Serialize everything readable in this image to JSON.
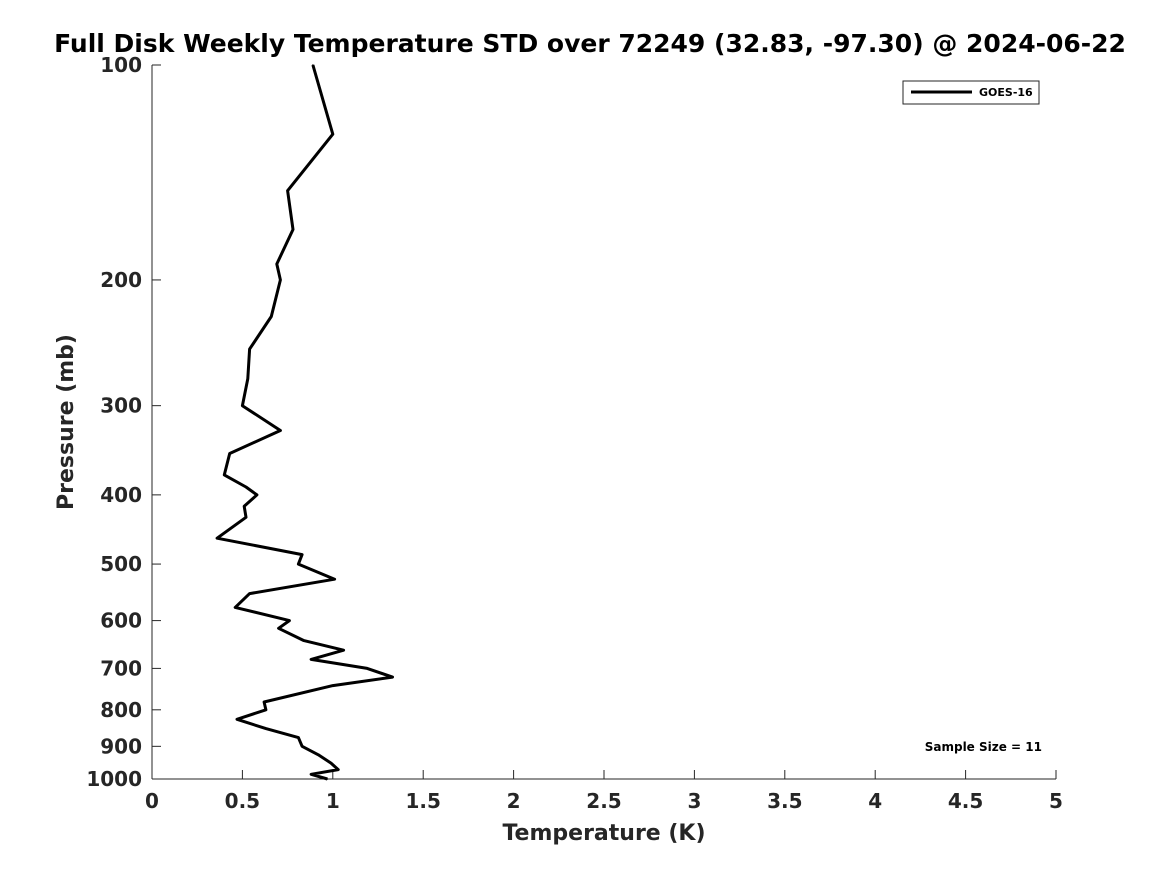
{
  "chart_data": {
    "type": "line",
    "title": "Full Disk Weekly Temperature STD over 72249 (32.83, -97.30) @ 2024-06-22",
    "xlabel": "Temperature (K)",
    "ylabel": "Pressure (mb)",
    "xlim": [
      0,
      5
    ],
    "ylim": [
      100,
      1000
    ],
    "y_scale": "log",
    "y_reversed": true,
    "x_ticks": [
      "0",
      "0.5",
      "1",
      "1.5",
      "2",
      "2.5",
      "3",
      "3.5",
      "4",
      "4.5",
      "5"
    ],
    "y_ticks": [
      "100",
      "200",
      "300",
      "400",
      "500",
      "600",
      "700",
      "800",
      "900",
      "1000"
    ],
    "grid": false,
    "legend_position": "top-right",
    "annotation": "Sample Size = 11",
    "series": [
      {
        "name": "GOES-16",
        "color": "#000000",
        "points": [
          [
            0.89,
            100
          ],
          [
            1.0,
            125
          ],
          [
            0.75,
            150
          ],
          [
            0.78,
            170
          ],
          [
            0.69,
            190
          ],
          [
            0.71,
            200
          ],
          [
            0.66,
            225
          ],
          [
            0.54,
            250
          ],
          [
            0.53,
            275
          ],
          [
            0.5,
            300
          ],
          [
            0.71,
            325
          ],
          [
            0.43,
            350
          ],
          [
            0.4,
            375
          ],
          [
            0.52,
            390
          ],
          [
            0.58,
            400
          ],
          [
            0.51,
            415
          ],
          [
            0.52,
            430
          ],
          [
            0.36,
            460
          ],
          [
            0.83,
            485
          ],
          [
            0.81,
            500
          ],
          [
            1.01,
            525
          ],
          [
            0.54,
            550
          ],
          [
            0.46,
            575
          ],
          [
            0.76,
            600
          ],
          [
            0.7,
            615
          ],
          [
            0.84,
            640
          ],
          [
            1.06,
            660
          ],
          [
            0.88,
            680
          ],
          [
            1.19,
            700
          ],
          [
            1.33,
            720
          ],
          [
            1.0,
            740
          ],
          [
            0.62,
            780
          ],
          [
            0.63,
            800
          ],
          [
            0.47,
            825
          ],
          [
            0.63,
            850
          ],
          [
            0.81,
            875
          ],
          [
            0.83,
            900
          ],
          [
            0.92,
            925
          ],
          [
            0.99,
            950
          ],
          [
            1.03,
            970
          ],
          [
            0.88,
            985
          ],
          [
            0.97,
            1000
          ]
        ]
      }
    ]
  }
}
